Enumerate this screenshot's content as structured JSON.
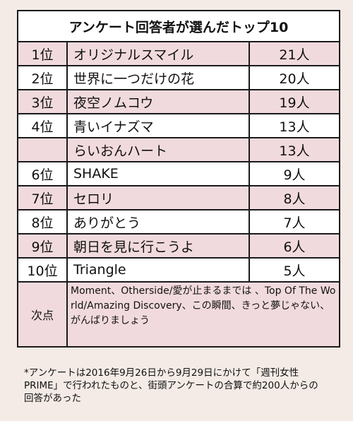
{
  "title": "アンケート回答者が選んだトップ10",
  "rows": [
    {
      "rank": "1位",
      "song": "オリジナルスマイル",
      "votes": "21人",
      "shade": "pink"
    },
    {
      "rank": "2位",
      "song": "世界に一つだけの花",
      "votes": "20人",
      "shade": "white"
    },
    {
      "rank": "3位",
      "song": "夜空ノムコウ",
      "votes": "19人",
      "shade": "pink"
    },
    {
      "rank": "4位",
      "song": "青いイナズマ",
      "votes": "13人",
      "shade": "white"
    },
    {
      "rank": "",
      "song": "らいおんハート",
      "votes": "13人",
      "shade": "pink"
    },
    {
      "rank": "6位",
      "song": "SHAKE",
      "votes": "9人",
      "shade": "white"
    },
    {
      "rank": "7位",
      "song": "セロリ",
      "votes": "8人",
      "shade": "pink"
    },
    {
      "rank": "8位",
      "song": "ありがとう",
      "votes": "7人",
      "shade": "white"
    },
    {
      "rank": "9位",
      "song": "朝日を見に行こうよ",
      "votes": "6人",
      "shade": "pink"
    },
    {
      "rank": "10位",
      "song": "Triangle",
      "votes": "5人",
      "shade": "white"
    }
  ],
  "honorable": {
    "label": "次点",
    "text": "Moment、Otherside/愛が止まるまでは 、Top Of The World/Amazing Discovery、この瞬間、きっと夢じゃない、がんばりましょう"
  },
  "footnote": "*アンケートは2016年9月26日から9月29日にかけて「週刊女性PRIME」で行われたものと、街頭アンケートの合算で約200人からの回答があった",
  "colors": {
    "pink_row": "#f1dadd",
    "background": "#f4ebe6",
    "border": "#1a1a1a"
  }
}
